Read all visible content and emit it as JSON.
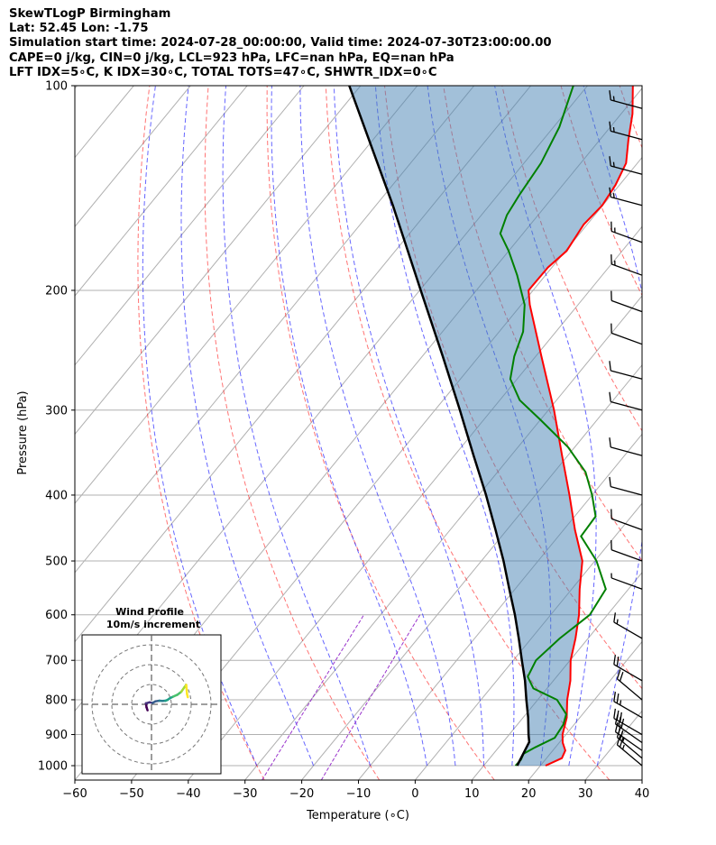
{
  "header": {
    "line1": "SkewTLogP Birmingham",
    "line2": "Lat: 52.45   Lon: -1.75",
    "line3": "Simulation start time: 2024-07-28_00:00:00, Valid time: 2024-07-30T23:00:00.00",
    "line4": "CAPE=0 j/kg, CIN=0 j/kg, LCL=923 hPa, LFC=nan hPa, EQ=nan hPa",
    "line5": "LFT IDX=5∘C, K IDX=30∘C, TOTAL TOTS=47∘C, SHWTR_IDX=0∘C"
  },
  "chart_data": {
    "type": "skewt",
    "xlabel": "Temperature (∘C)",
    "ylabel": "Pressure (hPa)",
    "xlim": [
      -60,
      40
    ],
    "ylim": [
      1050,
      100
    ],
    "x_ticks": [
      "−60",
      "−50",
      "−40",
      "−30",
      "−20",
      "−10",
      "0",
      "10",
      "20",
      "30",
      "40"
    ],
    "y_ticks": [
      "100",
      "200",
      "300",
      "400",
      "500",
      "600",
      "700",
      "800",
      "900",
      "1000"
    ],
    "grid": true,
    "series": [
      {
        "role": "temperature",
        "color": "#ff0000",
        "points": [
          [
            1000,
            20.9
          ],
          [
            975,
            22.7
          ],
          [
            950,
            22.2
          ],
          [
            925,
            20.6
          ],
          [
            900,
            19.4
          ],
          [
            850,
            17.7
          ],
          [
            800,
            15.2
          ],
          [
            750,
            13.0
          ],
          [
            700,
            10.1
          ],
          [
            650,
            7.8
          ],
          [
            600,
            5.0
          ],
          [
            550,
            1.4
          ],
          [
            500,
            -2.2
          ],
          [
            450,
            -8.0
          ],
          [
            400,
            -14.0
          ],
          [
            350,
            -21.0
          ],
          [
            300,
            -29.0
          ],
          [
            250,
            -39.0
          ],
          [
            210,
            -48.5
          ],
          [
            200,
            -50.8
          ],
          [
            185,
            -50.7
          ],
          [
            175,
            -49.8
          ],
          [
            160,
            -50.6
          ],
          [
            150,
            -50.1
          ],
          [
            140,
            -50.7
          ],
          [
            130,
            -52.0
          ],
          [
            120,
            -55.0
          ],
          [
            110,
            -58.0
          ],
          [
            100,
            -62.0
          ]
        ]
      },
      {
        "role": "dewpoint",
        "color": "#008000",
        "points": [
          [
            1000,
            15.6
          ],
          [
            980,
            15.7
          ],
          [
            960,
            15.3
          ],
          [
            940,
            16.4
          ],
          [
            910,
            18.5
          ],
          [
            870,
            18.1
          ],
          [
            840,
            17.1
          ],
          [
            800,
            13.4
          ],
          [
            770,
            7.6
          ],
          [
            740,
            4.9
          ],
          [
            700,
            4.0
          ],
          [
            650,
            5.0
          ],
          [
            600,
            6.9
          ],
          [
            550,
            6.0
          ],
          [
            500,
            0.3
          ],
          [
            460,
            -6.0
          ],
          [
            430,
            -6.3
          ],
          [
            400,
            -10.0
          ],
          [
            370,
            -14.5
          ],
          [
            340,
            -21.2
          ],
          [
            310,
            -30.0
          ],
          [
            290,
            -36.5
          ],
          [
            270,
            -41.2
          ],
          [
            250,
            -43.8
          ],
          [
            230,
            -45.8
          ],
          [
            210,
            -49.4
          ],
          [
            190,
            -55.0
          ],
          [
            175,
            -60.0
          ],
          [
            165,
            -64.0
          ],
          [
            155,
            -65.5
          ],
          [
            145,
            -66.2
          ],
          [
            130,
            -67.0
          ],
          [
            115,
            -69.0
          ],
          [
            100,
            -72.5
          ]
        ]
      },
      {
        "role": "parcel",
        "color": "#000000",
        "points": [
          [
            1000,
            15.9
          ],
          [
            923,
            14.6
          ],
          [
            900,
            13.4
          ],
          [
            850,
            10.9
          ],
          [
            800,
            8.0
          ],
          [
            750,
            5.0
          ],
          [
            700,
            1.5
          ],
          [
            650,
            -2.2
          ],
          [
            600,
            -6.3
          ],
          [
            550,
            -11.0
          ],
          [
            500,
            -16.1
          ],
          [
            450,
            -22.0
          ],
          [
            400,
            -28.7
          ],
          [
            350,
            -36.6
          ],
          [
            300,
            -45.6
          ],
          [
            250,
            -56.4
          ],
          [
            200,
            -69.8
          ],
          [
            150,
            -87.0
          ],
          [
            100,
            -112.0
          ]
        ]
      }
    ],
    "wind_barbs": [
      {
        "p": 1000,
        "speed": 26,
        "dir": 310
      },
      {
        "p": 975,
        "speed": 28,
        "dir": 310
      },
      {
        "p": 950,
        "speed": 29,
        "dir": 305
      },
      {
        "p": 925,
        "speed": 30,
        "dir": 305
      },
      {
        "p": 900,
        "speed": 30,
        "dir": 300
      },
      {
        "p": 850,
        "speed": 25,
        "dir": 300
      },
      {
        "p": 800,
        "speed": 23,
        "dir": 310
      },
      {
        "p": 750,
        "speed": 20,
        "dir": 300
      },
      {
        "p": 650,
        "speed": 15,
        "dir": 300
      },
      {
        "p": 550,
        "speed": 9,
        "dir": 290
      },
      {
        "p": 500,
        "speed": 10,
        "dir": 290
      },
      {
        "p": 450,
        "speed": 10,
        "dir": 290
      },
      {
        "p": 400,
        "speed": 10,
        "dir": 285
      },
      {
        "p": 350,
        "speed": 10,
        "dir": 285
      },
      {
        "p": 300,
        "speed": 12,
        "dir": 285
      },
      {
        "p": 270,
        "speed": 12,
        "dir": 285
      },
      {
        "p": 240,
        "speed": 12,
        "dir": 290
      },
      {
        "p": 215,
        "speed": 14,
        "dir": 290
      },
      {
        "p": 190,
        "speed": 15,
        "dir": 290
      },
      {
        "p": 170,
        "speed": 15,
        "dir": 290
      },
      {
        "p": 150,
        "speed": 15,
        "dir": 285
      },
      {
        "p": 135,
        "speed": 16,
        "dir": 285
      },
      {
        "p": 120,
        "speed": 16,
        "dir": 285
      },
      {
        "p": 108,
        "speed": 16,
        "dir": 285
      }
    ],
    "hodograph": {
      "title": "Wind Profile",
      "subtitle": "10m/s increment",
      "rings_ms": [
        10,
        20,
        30
      ],
      "points_ms": [
        [
          -2,
          -3
        ],
        [
          -2.5,
          -1.5
        ],
        [
          -2.8,
          0.5
        ],
        [
          -1,
          1
        ],
        [
          0.5,
          0.7
        ],
        [
          2,
          1.5
        ],
        [
          4,
          1.8
        ],
        [
          5.5,
          1.7
        ],
        [
          7,
          1.8
        ],
        [
          8,
          2.2
        ],
        [
          9.5,
          3.2
        ],
        [
          11,
          3.9
        ],
        [
          13,
          4.8
        ],
        [
          15,
          6.3
        ],
        [
          16.5,
          8.5
        ],
        [
          17.5,
          9.8
        ],
        [
          17.9,
          5.2
        ],
        [
          18.3,
          3.6
        ]
      ]
    }
  }
}
